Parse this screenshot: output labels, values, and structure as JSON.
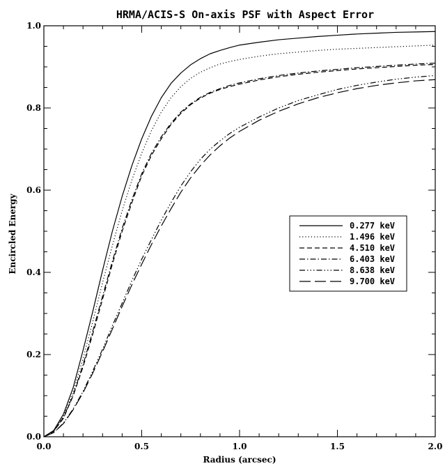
{
  "chart_data": {
    "type": "line",
    "title": "HRMA/ACIS-S On-axis PSF with Aspect Error",
    "xlabel": "Radius (arcsec)",
    "ylabel": "Encircled Energy",
    "xlim": [
      0.0,
      2.0
    ],
    "ylim": [
      0.0,
      1.0
    ],
    "x_ticks": [
      "0.0",
      "0.5",
      "1.0",
      "1.5",
      "2.0"
    ],
    "y_ticks": [
      "0.0",
      "0.2",
      "0.4",
      "0.6",
      "0.8",
      "1.0"
    ],
    "grid": false,
    "legend_position": "right-middle",
    "series": [
      {
        "name": "0.277 keV",
        "dash": "solid",
        "x": [
          0.0,
          0.05,
          0.1,
          0.15,
          0.2,
          0.25,
          0.3,
          0.35,
          0.4,
          0.45,
          0.5,
          0.55,
          0.6,
          0.65,
          0.7,
          0.75,
          0.8,
          0.85,
          0.9,
          0.95,
          1.0,
          1.1,
          1.2,
          1.3,
          1.4,
          1.5,
          1.6,
          1.7,
          1.8,
          1.9,
          2.0
        ],
        "y": [
          0.0,
          0.015,
          0.055,
          0.12,
          0.21,
          0.305,
          0.405,
          0.5,
          0.585,
          0.66,
          0.725,
          0.78,
          0.825,
          0.86,
          0.885,
          0.905,
          0.92,
          0.932,
          0.94,
          0.947,
          0.953,
          0.96,
          0.966,
          0.97,
          0.974,
          0.977,
          0.98,
          0.982,
          0.984,
          0.985,
          0.986
        ]
      },
      {
        "name": "1.496 keV",
        "dash": "dotted",
        "x": [
          0.0,
          0.05,
          0.1,
          0.15,
          0.2,
          0.25,
          0.3,
          0.35,
          0.4,
          0.45,
          0.5,
          0.55,
          0.6,
          0.65,
          0.7,
          0.75,
          0.8,
          0.85,
          0.9,
          0.95,
          1.0,
          1.1,
          1.2,
          1.3,
          1.4,
          1.5,
          1.6,
          1.7,
          1.8,
          1.9,
          2.0
        ],
        "y": [
          0.0,
          0.014,
          0.05,
          0.11,
          0.19,
          0.28,
          0.375,
          0.465,
          0.55,
          0.625,
          0.69,
          0.745,
          0.79,
          0.825,
          0.852,
          0.872,
          0.887,
          0.898,
          0.907,
          0.913,
          0.918,
          0.926,
          0.932,
          0.936,
          0.94,
          0.943,
          0.945,
          0.947,
          0.949,
          0.951,
          0.953
        ]
      },
      {
        "name": "4.510 keV",
        "dash": "dashed",
        "x": [
          0.0,
          0.05,
          0.1,
          0.15,
          0.2,
          0.25,
          0.3,
          0.35,
          0.4,
          0.45,
          0.5,
          0.55,
          0.6,
          0.65,
          0.7,
          0.75,
          0.8,
          0.85,
          0.9,
          0.95,
          1.0,
          1.1,
          1.2,
          1.3,
          1.4,
          1.5,
          1.6,
          1.7,
          1.8,
          1.9,
          2.0
        ],
        "y": [
          0.0,
          0.013,
          0.045,
          0.1,
          0.17,
          0.25,
          0.335,
          0.42,
          0.5,
          0.57,
          0.635,
          0.685,
          0.725,
          0.76,
          0.787,
          0.808,
          0.824,
          0.836,
          0.845,
          0.852,
          0.858,
          0.868,
          0.876,
          0.882,
          0.887,
          0.891,
          0.895,
          0.898,
          0.901,
          0.904,
          0.906
        ]
      },
      {
        "name": "6.403 keV",
        "dash": "dashdot",
        "x": [
          0.0,
          0.05,
          0.1,
          0.15,
          0.2,
          0.25,
          0.3,
          0.35,
          0.4,
          0.45,
          0.5,
          0.55,
          0.6,
          0.65,
          0.7,
          0.75,
          0.8,
          0.85,
          0.9,
          0.95,
          1.0,
          1.1,
          1.2,
          1.3,
          1.4,
          1.5,
          1.6,
          1.7,
          1.8,
          1.9,
          2.0
        ],
        "y": [
          0.0,
          0.014,
          0.047,
          0.102,
          0.175,
          0.257,
          0.342,
          0.427,
          0.507,
          0.577,
          0.64,
          0.69,
          0.73,
          0.763,
          0.79,
          0.81,
          0.826,
          0.838,
          0.847,
          0.855,
          0.861,
          0.871,
          0.879,
          0.885,
          0.89,
          0.894,
          0.898,
          0.901,
          0.904,
          0.907,
          0.909
        ]
      },
      {
        "name": "8.638 keV",
        "dash": "dashdotdotdot",
        "x": [
          0.0,
          0.05,
          0.1,
          0.15,
          0.2,
          0.25,
          0.3,
          0.35,
          0.4,
          0.45,
          0.5,
          0.55,
          0.6,
          0.65,
          0.7,
          0.75,
          0.8,
          0.85,
          0.9,
          0.95,
          1.0,
          1.1,
          1.2,
          1.3,
          1.4,
          1.5,
          1.6,
          1.7,
          1.8,
          1.9,
          2.0
        ],
        "y": [
          0.0,
          0.01,
          0.033,
          0.068,
          0.11,
          0.16,
          0.213,
          0.27,
          0.325,
          0.38,
          0.432,
          0.48,
          0.527,
          0.57,
          0.61,
          0.645,
          0.675,
          0.7,
          0.72,
          0.738,
          0.753,
          0.778,
          0.8,
          0.818,
          0.832,
          0.845,
          0.855,
          0.863,
          0.87,
          0.875,
          0.879
        ]
      },
      {
        "name": "9.700 keV",
        "dash": "longdash",
        "x": [
          0.0,
          0.05,
          0.1,
          0.15,
          0.2,
          0.25,
          0.3,
          0.35,
          0.4,
          0.45,
          0.5,
          0.55,
          0.6,
          0.65,
          0.7,
          0.75,
          0.8,
          0.85,
          0.9,
          0.95,
          1.0,
          1.1,
          1.2,
          1.3,
          1.4,
          1.5,
          1.6,
          1.7,
          1.8,
          1.9,
          2.0
        ],
        "y": [
          0.0,
          0.01,
          0.032,
          0.066,
          0.107,
          0.155,
          0.207,
          0.262,
          0.317,
          0.37,
          0.42,
          0.468,
          0.513,
          0.555,
          0.595,
          0.63,
          0.66,
          0.686,
          0.708,
          0.727,
          0.743,
          0.77,
          0.792,
          0.81,
          0.825,
          0.837,
          0.847,
          0.855,
          0.861,
          0.866,
          0.869
        ]
      }
    ]
  }
}
